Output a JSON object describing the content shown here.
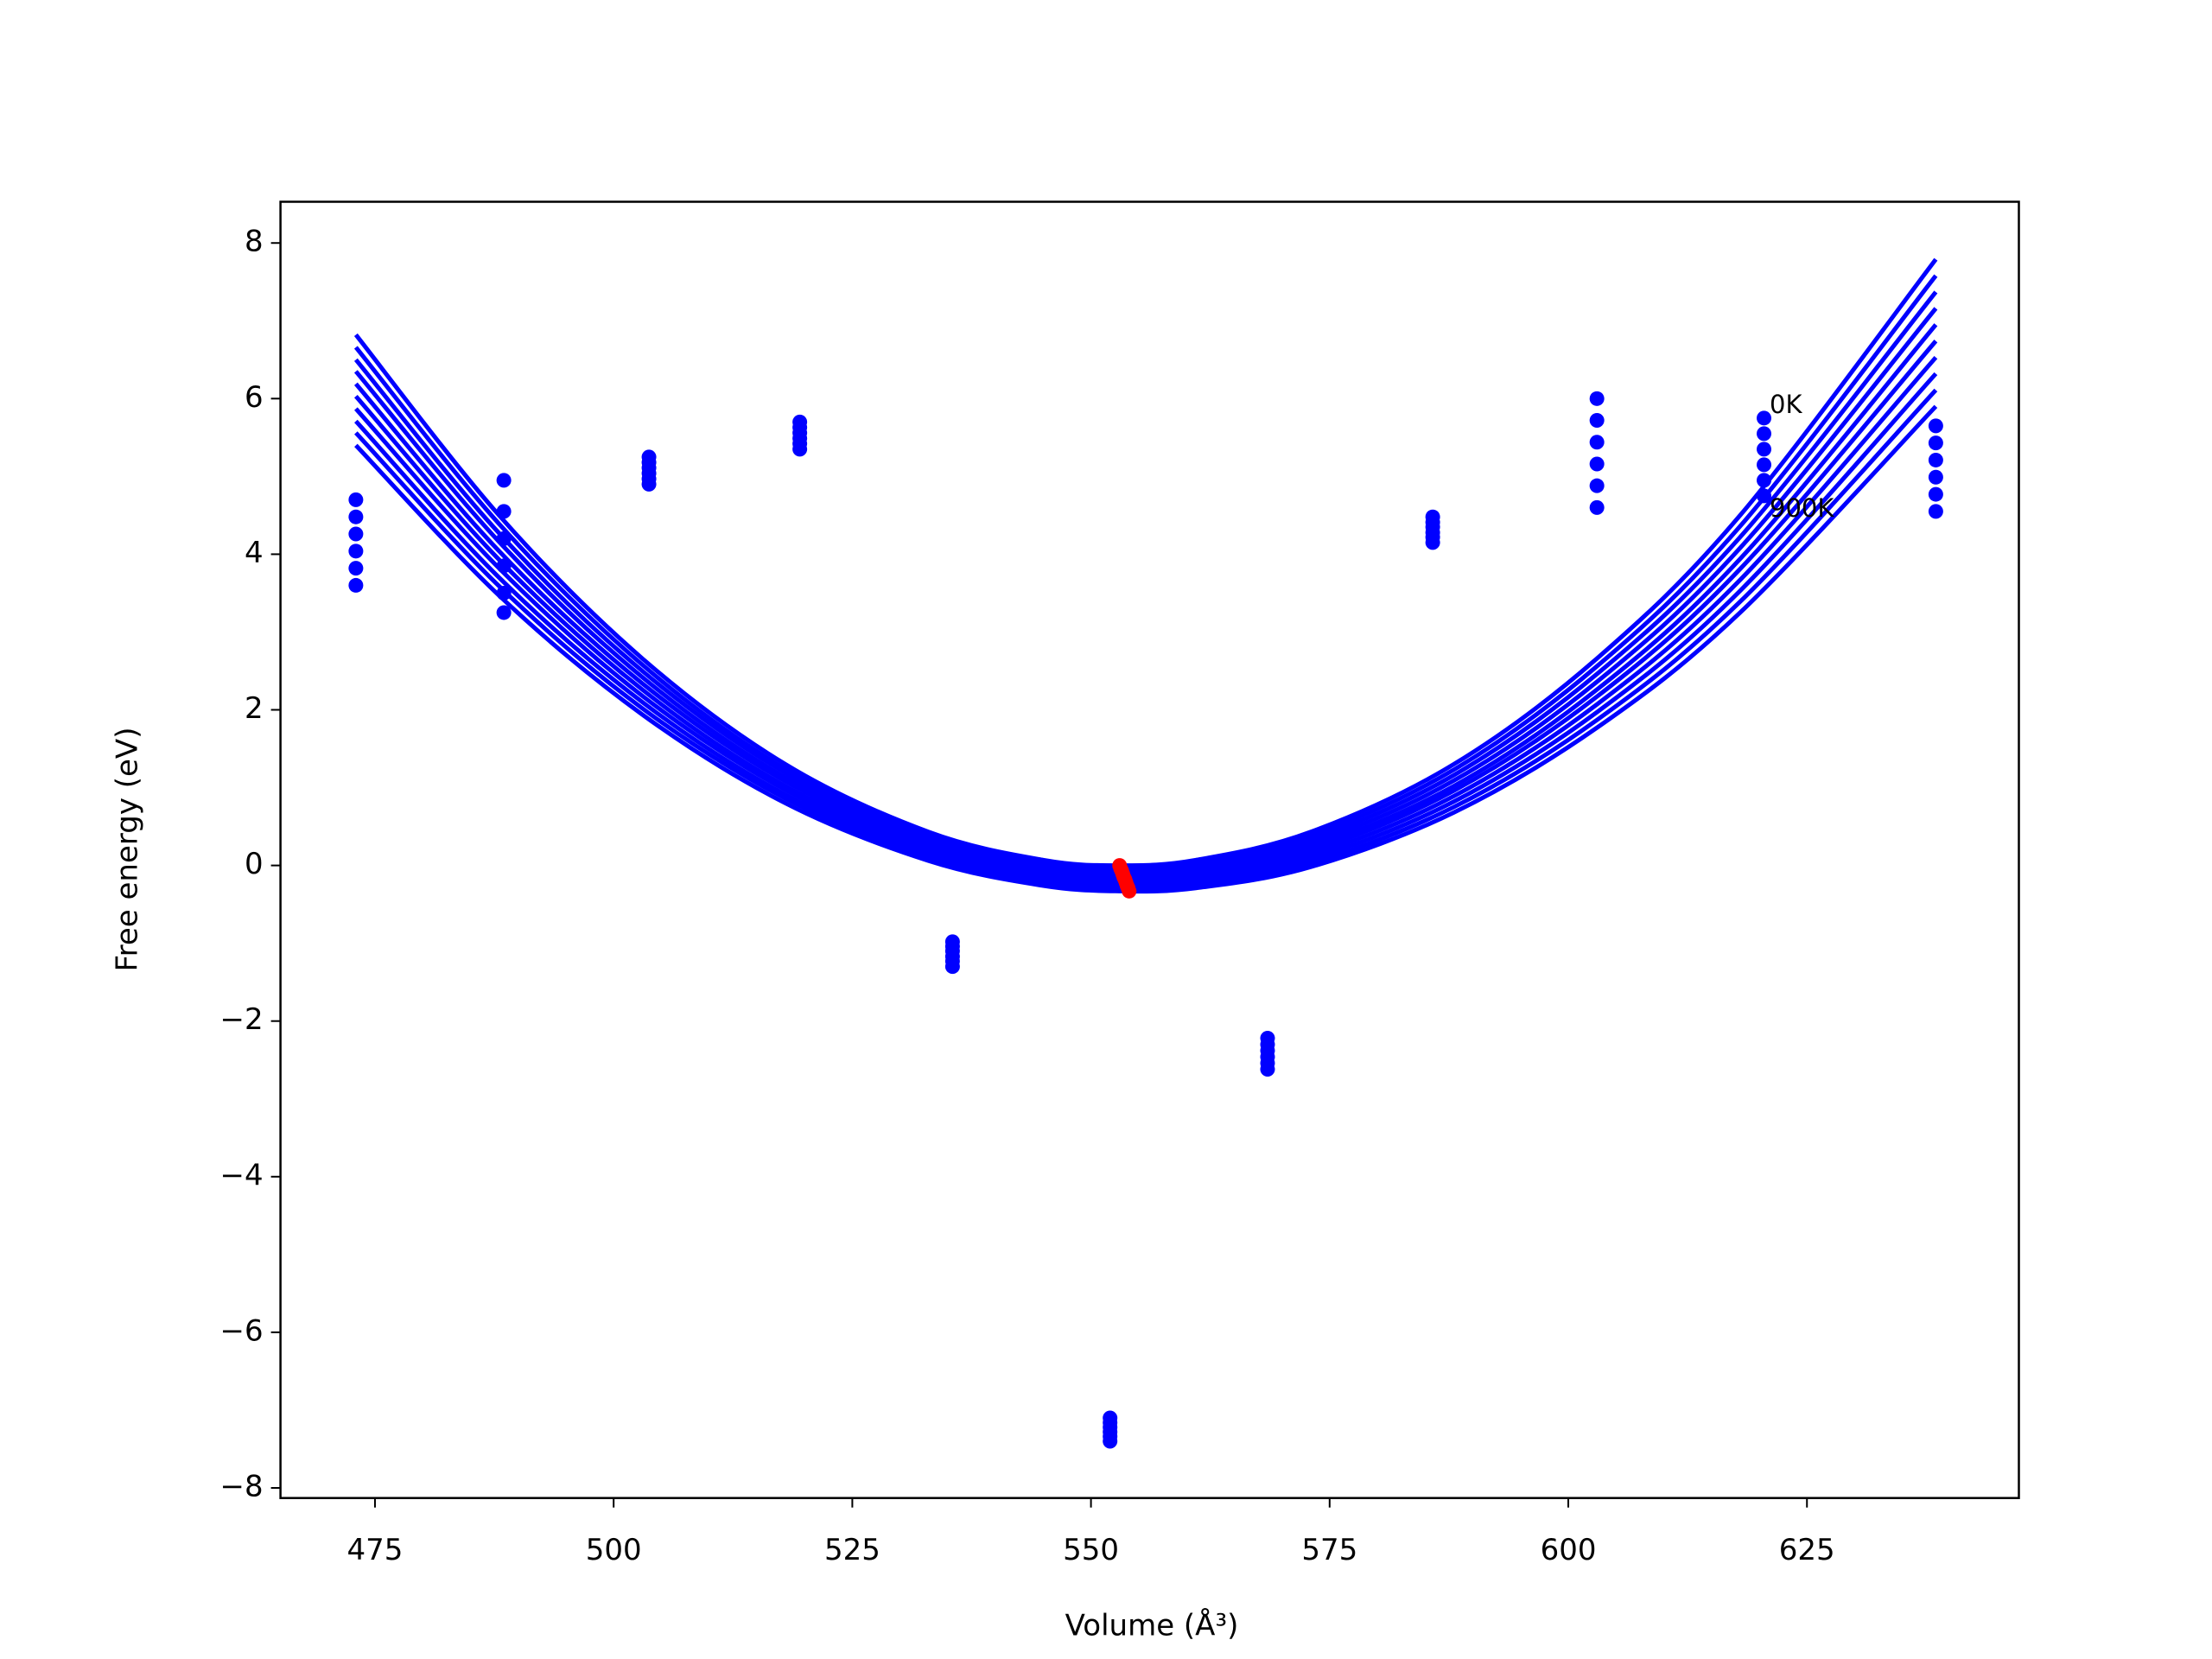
{
  "chart_data": {
    "type": "line",
    "x_label": "Volume (Å³)",
    "y_label": "Free energy (eV)",
    "annotations": [
      "0K",
      "900K"
    ],
    "xlim": [
      465.1,
      647.2
    ],
    "ylim": [
      -8.13,
      8.53
    ],
    "xticks": [
      475,
      500,
      525,
      550,
      575,
      600,
      625
    ],
    "yticks": [
      {
        "value": -8,
        "label": "−8"
      },
      {
        "value": -6,
        "label": "−6"
      },
      {
        "value": -4,
        "label": "−4"
      },
      {
        "value": -2,
        "label": "−2"
      },
      0,
      2,
      4,
      6,
      8
    ],
    "grid": false,
    "x": [
      473,
      488,
      503,
      518,
      533,
      545,
      553,
      561,
      573,
      588,
      603,
      618,
      638.5
    ],
    "series": [
      {
        "color": "#0000ff",
        "values": [
          6.82,
          4.5,
          2.66,
          1.3,
          0.43,
          0.07,
          0,
          0.07,
          0.43,
          1.3,
          2.66,
          4.5,
          7.79
        ]
      },
      {
        "color": "#0000ff",
        "values": [
          6.66,
          4.39,
          2.58,
          1.24,
          0.39,
          0.03,
          -0.04,
          0.03,
          0.38,
          1.23,
          2.56,
          4.36,
          7.58
        ]
      },
      {
        "color": "#0000ff",
        "values": [
          6.5,
          4.27,
          2.5,
          1.19,
          0.35,
          0.0,
          -0.07,
          -0.01,
          0.33,
          1.16,
          2.46,
          4.22,
          7.37
        ]
      },
      {
        "color": "#0000ff",
        "values": [
          6.35,
          4.16,
          2.42,
          1.13,
          0.31,
          -0.04,
          -0.11,
          -0.05,
          0.28,
          1.09,
          2.36,
          4.08,
          7.16
        ]
      },
      {
        "color": "#0000ff",
        "values": [
          6.19,
          4.04,
          2.34,
          1.08,
          0.27,
          -0.08,
          -0.15,
          -0.09,
          0.23,
          1.02,
          2.26,
          3.94,
          6.95
        ]
      },
      {
        "color": "#0000ff",
        "values": [
          6.03,
          3.93,
          2.26,
          1.02,
          0.23,
          -0.11,
          -0.18,
          -0.13,
          0.18,
          0.96,
          2.17,
          3.81,
          6.74
        ]
      },
      {
        "color": "#0000ff",
        "values": [
          5.87,
          3.82,
          2.18,
          0.97,
          0.18,
          -0.15,
          -0.22,
          -0.17,
          0.13,
          0.89,
          2.07,
          3.67,
          6.53
        ]
      },
      {
        "color": "#0000ff",
        "values": [
          5.71,
          3.7,
          2.1,
          0.91,
          0.14,
          -0.19,
          -0.26,
          -0.21,
          0.08,
          0.82,
          1.97,
          3.53,
          6.32
        ]
      },
      {
        "color": "#0000ff",
        "values": [
          5.56,
          3.59,
          2.02,
          0.86,
          0.1,
          -0.22,
          -0.29,
          -0.25,
          0.03,
          0.75,
          1.87,
          3.39,
          6.11
        ]
      },
      {
        "color": "#0000ff",
        "values": [
          5.4,
          3.47,
          1.94,
          0.8,
          0.06,
          -0.26,
          -0.33,
          -0.29,
          -0.02,
          0.68,
          1.77,
          3.25,
          5.9
        ]
      }
    ],
    "scatter_series": [
      {
        "color": "#0000ff",
        "x": [
          473,
          473,
          473,
          473,
          473,
          473,
          488.5,
          488.5,
          488.5,
          488.5,
          488.5,
          488.5,
          503.7,
          503.7,
          503.7,
          503.7,
          503.7,
          503.7,
          519.5,
          519.5,
          519.5,
          519.5,
          519.5,
          519.5,
          535.5,
          535.5,
          535.5,
          535.5,
          535.5,
          535.5,
          552,
          552,
          552,
          552,
          552,
          552,
          568.5,
          568.5,
          568.5,
          568.5,
          568.5,
          568.5,
          585.8,
          585.8,
          585.8,
          585.8,
          585.8,
          585.8,
          603,
          603,
          603,
          603,
          603,
          603,
          620.5,
          620.5,
          620.5,
          620.5,
          620.5,
          620.5,
          638.5,
          638.5,
          638.5,
          638.5,
          638.5,
          638.5
        ],
        "y": [
          4.7,
          4.48,
          4.26,
          4.04,
          3.82,
          3.6,
          4.95,
          4.55,
          4.2,
          3.85,
          3.5,
          3.25,
          5.25,
          5.18,
          5.11,
          5.04,
          4.97,
          4.9,
          5.7,
          5.63,
          5.56,
          5.49,
          5.42,
          5.35,
          -0.98,
          -1.04,
          -1.1,
          -1.17,
          -1.23,
          -1.3,
          -7.1,
          -7.16,
          -7.22,
          -7.28,
          -7.34,
          -7.4,
          -2.22,
          -2.3,
          -2.38,
          -2.46,
          -2.54,
          -2.62,
          4.48,
          4.41,
          4.35,
          4.28,
          4.22,
          4.15,
          6.0,
          5.72,
          5.44,
          5.16,
          4.88,
          4.6,
          5.75,
          5.55,
          5.35,
          5.15,
          4.95,
          4.75,
          5.65,
          5.43,
          5.21,
          4.99,
          4.77,
          4.55
        ]
      },
      {
        "color": "#ff0000",
        "x": [
          553.0,
          553.11,
          553.22,
          553.33,
          553.44,
          553.56,
          553.67,
          553.78,
          553.89,
          554.0
        ],
        "y": [
          0,
          -0.04,
          -0.07,
          -0.11,
          -0.15,
          -0.18,
          -0.22,
          -0.26,
          -0.29,
          -0.33
        ]
      }
    ]
  }
}
